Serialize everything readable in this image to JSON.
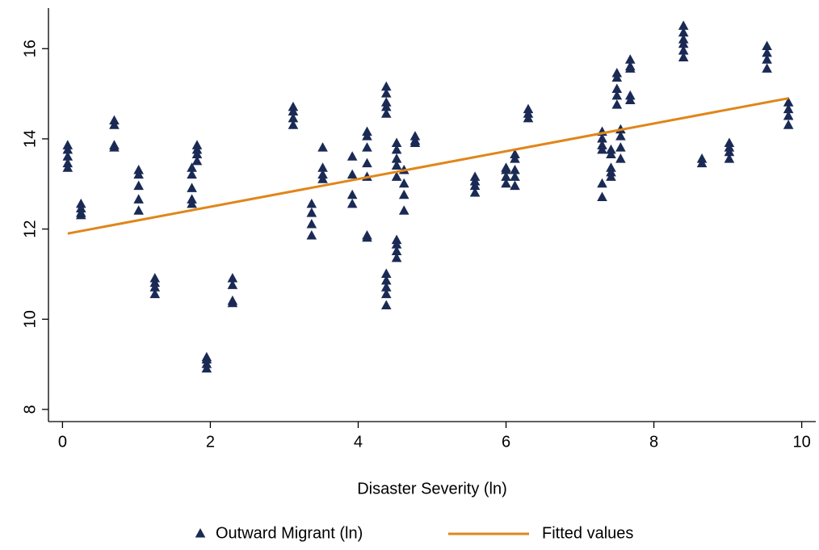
{
  "chart_data": {
    "type": "scatter",
    "x_label": "Disaster Severity (ln)",
    "xlim": [
      -0.19,
      10.19
    ],
    "xticks": [
      0,
      2,
      4,
      6,
      8,
      10
    ],
    "ylim": [
      7.73,
      16.9
    ],
    "yticks": [
      8,
      10,
      12,
      14,
      16
    ],
    "grid": false,
    "legend": "bottom",
    "series": [
      {
        "name": "Outward Migrant (ln)",
        "type": "scatter",
        "color": "#1a2a55",
        "x": [
          0.07,
          0.07,
          0.07,
          0.07,
          0.07,
          0.25,
          0.25,
          0.25,
          0.25,
          0.7,
          0.7,
          0.7,
          0.7,
          1.03,
          1.03,
          1.03,
          1.03,
          1.03,
          1.25,
          1.25,
          1.25,
          1.25,
          1.75,
          1.75,
          1.75,
          1.75,
          1.75,
          1.82,
          1.82,
          1.82,
          1.82,
          1.95,
          1.95,
          1.95,
          1.95,
          2.3,
          2.3,
          2.3,
          2.3,
          3.12,
          3.12,
          3.12,
          3.12,
          3.37,
          3.37,
          3.37,
          3.37,
          3.52,
          3.52,
          3.52,
          3.52,
          3.92,
          3.92,
          3.92,
          3.92,
          4.12,
          4.12,
          4.12,
          4.12,
          4.12,
          4.12,
          4.12,
          4.38,
          4.38,
          4.38,
          4.38,
          4.38,
          4.38,
          4.38,
          4.38,
          4.38,
          4.38,
          4.52,
          4.52,
          4.52,
          4.52,
          4.52,
          4.52,
          4.52,
          4.52,
          4.52,
          4.62,
          4.62,
          4.62,
          4.62,
          4.77,
          4.77,
          4.77,
          5.58,
          5.58,
          5.58,
          5.58,
          6,
          6,
          6,
          6,
          6.12,
          6.12,
          6.12,
          6.12,
          6.12,
          6.3,
          6.3,
          6.3,
          7.3,
          7.3,
          7.3,
          7.3,
          7.3,
          7.3,
          7.42,
          7.42,
          7.42,
          7.42,
          7.42,
          7.5,
          7.5,
          7.5,
          7.5,
          7.5,
          7.55,
          7.55,
          7.55,
          7.55,
          7.68,
          7.68,
          7.68,
          7.68,
          7.68,
          8.4,
          8.4,
          8.4,
          8.4,
          8.4,
          8.4,
          8.65,
          8.65,
          9.02,
          9.02,
          9.02,
          9.02,
          9.53,
          9.53,
          9.53,
          9.53,
          9.82,
          9.82,
          9.82,
          9.82
        ],
        "values": [
          13.85,
          13.75,
          13.6,
          13.45,
          13.35,
          12.55,
          12.45,
          12.35,
          12.3,
          14.4,
          14.3,
          13.85,
          13.8,
          13.3,
          13.2,
          12.95,
          12.65,
          12.4,
          10.9,
          10.8,
          10.7,
          10.55,
          13.35,
          13.2,
          12.9,
          12.65,
          12.55,
          13.85,
          13.75,
          13.65,
          13.5,
          9.15,
          9.1,
          9.0,
          8.9,
          10.9,
          10.75,
          10.4,
          10.35,
          14.7,
          14.6,
          14.45,
          14.3,
          12.55,
          12.35,
          12.1,
          11.85,
          13.8,
          13.35,
          13.2,
          13.1,
          13.6,
          13.2,
          12.75,
          12.55,
          14.15,
          14.05,
          13.8,
          13.45,
          13.15,
          11.85,
          11.8,
          15.15,
          15.0,
          14.8,
          14.7,
          14.55,
          11.0,
          10.85,
          10.7,
          10.55,
          10.3,
          13.9,
          13.75,
          13.55,
          13.4,
          13.15,
          11.75,
          11.65,
          11.5,
          11.35,
          13.3,
          13.0,
          12.75,
          12.4,
          14.05,
          13.95,
          13.9,
          13.15,
          13.05,
          12.95,
          12.8,
          13.35,
          13.3,
          13.15,
          13.0,
          13.65,
          13.55,
          13.3,
          13.15,
          12.95,
          14.65,
          14.55,
          14.45,
          14.15,
          14.0,
          13.85,
          13.75,
          13.0,
          12.7,
          13.75,
          13.65,
          13.35,
          13.25,
          13.15,
          15.45,
          15.35,
          15.1,
          14.95,
          14.75,
          14.2,
          14.05,
          13.8,
          13.55,
          15.75,
          15.6,
          15.55,
          14.95,
          14.85,
          16.5,
          16.35,
          16.2,
          16.1,
          15.95,
          15.8,
          13.55,
          13.45,
          13.9,
          13.8,
          13.7,
          13.55,
          16.05,
          15.9,
          15.75,
          15.55,
          14.8,
          14.65,
          14.5,
          14.3
        ]
      },
      {
        "name": "Fitted values",
        "type": "line",
        "color": "#e0861a",
        "x": [
          0.07,
          9.82
        ],
        "values": [
          11.9,
          14.9
        ]
      }
    ]
  }
}
